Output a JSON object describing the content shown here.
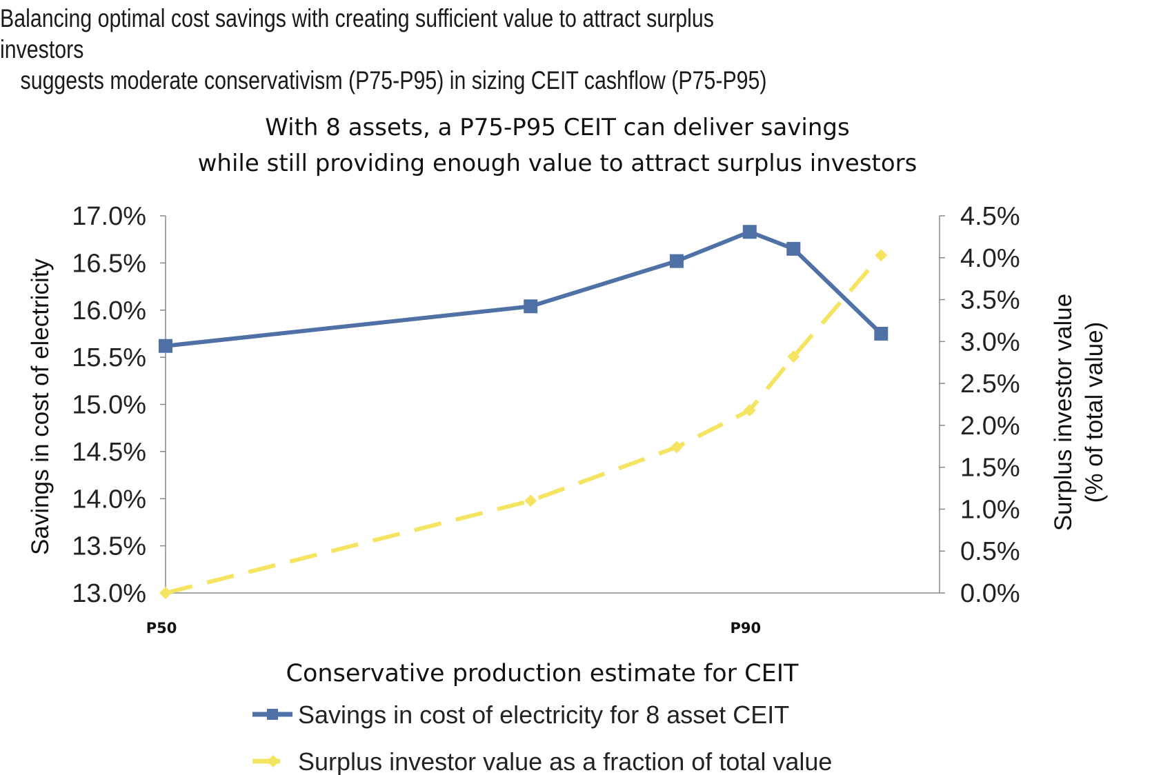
{
  "header": {
    "line1": "Balancing optimal cost savings with creating sufficient value to attract surplus investors",
    "line2": "suggests moderate conservativism (P75-P95) in sizing CEIT cashflow (P75-P95)"
  },
  "chart_data": {
    "type": "line",
    "title_lines": [
      "With 8 assets, a P75-P95 CEIT can deliver savings",
      "while still providing enough  value to attract surplus investors"
    ],
    "xlabel": "Conservative production estimate for CEIT",
    "ylabel_left": "Savings in cost of electricity",
    "ylabel_right_lines": [
      "Surplus investor value",
      "(% of total value)"
    ],
    "x_tick_labels": [
      "P50",
      "P90"
    ],
    "x_tick_indices": [
      0,
      3
    ],
    "y_left": {
      "min": 0.13,
      "max": 0.17,
      "ticks": [
        "13.0%",
        "13.5%",
        "14.0%",
        "14.5%",
        "15.0%",
        "15.5%",
        "16.0%",
        "16.5%",
        "17.0%"
      ]
    },
    "y_right": {
      "min": 0.0,
      "max": 0.045,
      "ticks": [
        "0.0%",
        "0.5%",
        "1.0%",
        "1.5%",
        "2.0%",
        "2.5%",
        "3.0%",
        "3.5%",
        "4.0%",
        "4.5%"
      ]
    },
    "x": [
      0.5,
      0.75,
      0.85,
      0.9,
      0.93,
      0.99
    ],
    "series": [
      {
        "name": "Savings in cost of electricity for 8 asset CEIT",
        "axis": "left",
        "color": "#4f71a6",
        "marker": "square",
        "dash": false,
        "values": [
          0.1562,
          0.1604,
          0.1652,
          0.1683,
          0.1665,
          0.1575
        ]
      },
      {
        "name": "Surplus investor value as a fraction of total value",
        "axis": "right",
        "color": "#f5e462",
        "marker": "diamond",
        "dash": true,
        "values": [
          0.0,
          0.011,
          0.0174,
          0.0218,
          0.0282,
          0.0403
        ]
      }
    ],
    "legend": "bottom",
    "grid": false
  }
}
